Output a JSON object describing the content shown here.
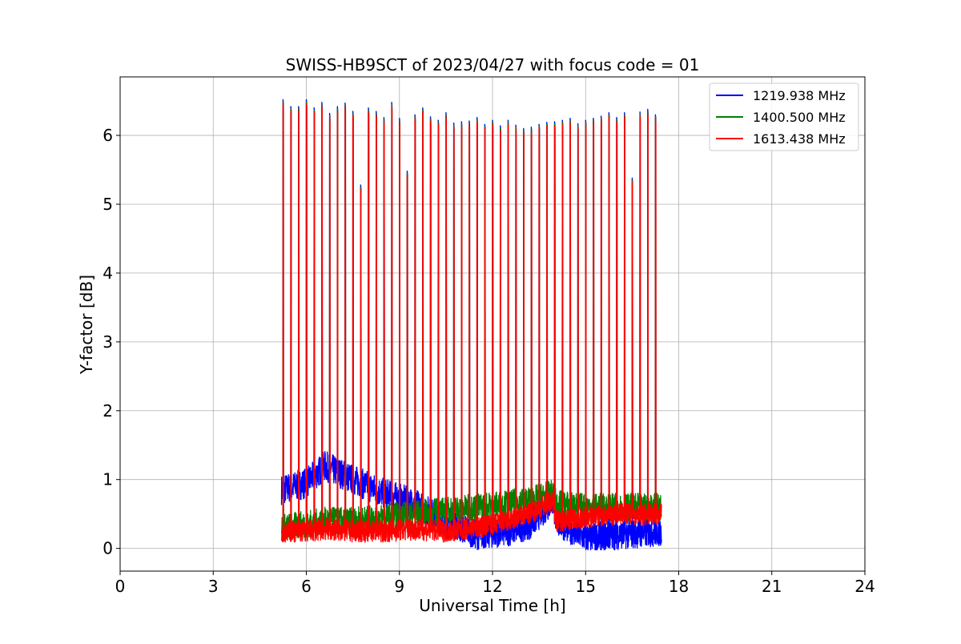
{
  "chart_data": {
    "type": "line",
    "title": "SWISS-HB9SCT of 2023/04/27 with focus code = 01",
    "xlabel": "Universal Time [h]",
    "ylabel": "Y-factor [dB]",
    "xlim": [
      0,
      24
    ],
    "ylim": [
      -0.33,
      6.85
    ],
    "xticks": [
      0,
      3,
      6,
      9,
      12,
      15,
      18,
      21,
      24
    ],
    "yticks": [
      0,
      1,
      2,
      3,
      4,
      5,
      6
    ],
    "grid": true,
    "legend_position": "top-right",
    "series": [
      {
        "name": "1219.938 MHz",
        "color": "#0000ff"
      },
      {
        "name": "1400.500 MHz",
        "color": "#008000"
      },
      {
        "name": "1613.438 MHz",
        "color": "#ff0000"
      }
    ],
    "data_span_hours": [
      5.2,
      17.45
    ],
    "calibration_peaks": [
      {
        "t": 5.25,
        "y": 6.52
      },
      {
        "t": 5.5,
        "y": 6.42
      },
      {
        "t": 5.75,
        "y": 6.42
      },
      {
        "t": 6.0,
        "y": 6.52
      },
      {
        "t": 6.25,
        "y": 6.4
      },
      {
        "t": 6.5,
        "y": 6.48
      },
      {
        "t": 6.75,
        "y": 6.32
      },
      {
        "t": 7.0,
        "y": 6.42
      },
      {
        "t": 7.25,
        "y": 6.47
      },
      {
        "t": 7.5,
        "y": 6.35
      },
      {
        "t": 7.75,
        "y": 5.28
      },
      {
        "t": 8.0,
        "y": 6.4
      },
      {
        "t": 8.25,
        "y": 6.35
      },
      {
        "t": 8.5,
        "y": 6.26
      },
      {
        "t": 8.75,
        "y": 6.48
      },
      {
        "t": 9.0,
        "y": 6.25
      },
      {
        "t": 9.25,
        "y": 5.48
      },
      {
        "t": 9.5,
        "y": 6.3
      },
      {
        "t": 9.75,
        "y": 6.4
      },
      {
        "t": 10.0,
        "y": 6.27
      },
      {
        "t": 10.25,
        "y": 6.22
      },
      {
        "t": 10.5,
        "y": 6.33
      },
      {
        "t": 10.75,
        "y": 6.18
      },
      {
        "t": 11.0,
        "y": 6.2
      },
      {
        "t": 11.25,
        "y": 6.21
      },
      {
        "t": 11.5,
        "y": 6.26
      },
      {
        "t": 11.75,
        "y": 6.16
      },
      {
        "t": 12.0,
        "y": 6.22
      },
      {
        "t": 12.25,
        "y": 6.14
      },
      {
        "t": 12.5,
        "y": 6.22
      },
      {
        "t": 12.75,
        "y": 6.15
      },
      {
        "t": 13.0,
        "y": 6.1
      },
      {
        "t": 13.25,
        "y": 6.12
      },
      {
        "t": 13.5,
        "y": 6.16
      },
      {
        "t": 13.75,
        "y": 6.19
      },
      {
        "t": 14.0,
        "y": 6.2
      },
      {
        "t": 14.25,
        "y": 6.22
      },
      {
        "t": 14.5,
        "y": 6.25
      },
      {
        "t": 14.75,
        "y": 6.17
      },
      {
        "t": 15.0,
        "y": 6.22
      },
      {
        "t": 15.25,
        "y": 6.25
      },
      {
        "t": 15.5,
        "y": 6.28
      },
      {
        "t": 15.75,
        "y": 6.33
      },
      {
        "t": 16.0,
        "y": 6.26
      },
      {
        "t": 16.25,
        "y": 6.33
      },
      {
        "t": 16.5,
        "y": 5.38
      },
      {
        "t": 16.75,
        "y": 6.34
      },
      {
        "t": 17.0,
        "y": 6.38
      },
      {
        "t": 17.25,
        "y": 6.3
      }
    ],
    "baseline_profile": {
      "t": [
        5.2,
        6.0,
        6.6,
        7.5,
        8.5,
        9.5,
        10.5,
        11.5,
        12.5,
        13.2,
        13.95,
        14.05,
        15.0,
        16.0,
        17.45
      ],
      "blue": [
        0.85,
        0.95,
        1.2,
        1.0,
        0.8,
        0.65,
        0.4,
        0.2,
        0.25,
        0.35,
        0.7,
        0.4,
        0.15,
        0.2,
        0.25
      ],
      "green": [
        0.3,
        0.35,
        0.4,
        0.4,
        0.45,
        0.5,
        0.55,
        0.6,
        0.65,
        0.7,
        0.8,
        0.65,
        0.6,
        0.6,
        0.6
      ],
      "red": [
        0.25,
        0.25,
        0.28,
        0.25,
        0.25,
        0.28,
        0.25,
        0.3,
        0.4,
        0.5,
        0.7,
        0.4,
        0.45,
        0.5,
        0.5
      ]
    }
  }
}
